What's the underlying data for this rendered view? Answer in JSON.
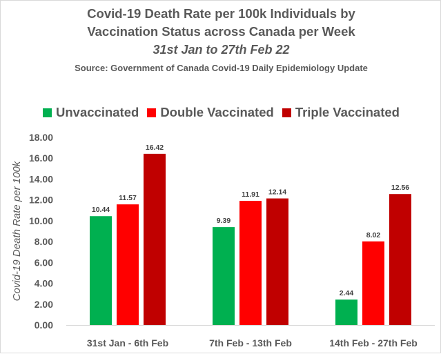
{
  "chart_data": {
    "type": "bar",
    "title_line1": "Covid-19 Death Rate per 100k Individuals by",
    "title_line2": "Vaccination Status across Canada per Week",
    "subtitle": "31st Jan to 27th Feb 22",
    "source": "Source: Government of Canada  Covid-19 Daily Epidemiology Update",
    "ylabel": "Covid-19 Death Rate per 100k",
    "xlabel": "",
    "ylim": [
      0,
      18
    ],
    "ytick_step": 2,
    "ytick_labels": [
      "0.00",
      "2.00",
      "4.00",
      "6.00",
      "8.00",
      "10.00",
      "12.00",
      "14.00",
      "16.00",
      "18.00"
    ],
    "grid": false,
    "legend_position": "top",
    "categories": [
      "31st Jan - 6th Feb",
      "7th Feb - 13th Feb",
      "14th Feb - 27th Feb"
    ],
    "series": [
      {
        "name": "Unvaccinated",
        "color": "#00b050",
        "values": [
          10.44,
          9.39,
          2.44
        ],
        "labels": [
          "10.44",
          "9.39",
          "2.44"
        ]
      },
      {
        "name": "Double Vaccinated",
        "color": "#ff0000",
        "values": [
          11.57,
          11.91,
          8.02
        ],
        "labels": [
          "11.57",
          "11.91",
          "8.02"
        ]
      },
      {
        "name": "Triple Vaccinated",
        "color": "#c00000",
        "values": [
          16.42,
          12.14,
          12.56
        ],
        "labels": [
          "16.42",
          "12.14",
          "12.56"
        ]
      }
    ]
  }
}
